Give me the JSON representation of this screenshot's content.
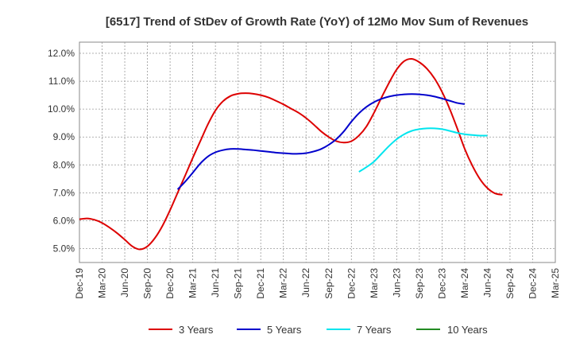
{
  "chart_data": {
    "type": "line",
    "title": "[6517]  Trend of StDev of Growth Rate (YoY) of 12Mo Mov Sum of Revenues",
    "xlabel": "",
    "ylabel": "",
    "ylim": [
      4.5,
      12.4
    ],
    "grid": true,
    "legend_position": "bottom",
    "x_tick_labels": [
      "Dec-19",
      "Mar-20",
      "Jun-20",
      "Sep-20",
      "Dec-20",
      "Mar-21",
      "Jun-21",
      "Sep-21",
      "Dec-21",
      "Mar-22",
      "Jun-22",
      "Sep-22",
      "Dec-22",
      "Mar-23",
      "Jun-23",
      "Sep-23",
      "Dec-23",
      "Mar-24",
      "Jun-24",
      "Sep-24",
      "Dec-24",
      "Mar-25"
    ],
    "y_ticks": [
      5.0,
      6.0,
      7.0,
      8.0,
      9.0,
      10.0,
      11.0,
      12.0
    ],
    "y_tick_labels": [
      "5.0%",
      "6.0%",
      "7.0%",
      "8.0%",
      "9.0%",
      "10.0%",
      "11.0%",
      "12.0%"
    ],
    "series": [
      {
        "name": "3 Years",
        "color": "#dd0000",
        "points": [
          [
            0,
            6.05
          ],
          [
            1,
            6.08
          ],
          [
            2,
            6.03
          ],
          [
            3,
            5.92
          ],
          [
            4,
            5.75
          ],
          [
            5,
            5.55
          ],
          [
            6,
            5.32
          ],
          [
            7,
            5.08
          ],
          [
            8,
            4.97
          ],
          [
            9,
            5.08
          ],
          [
            10,
            5.38
          ],
          [
            11,
            5.82
          ],
          [
            12,
            6.38
          ],
          [
            13,
            7.0
          ],
          [
            14,
            7.62
          ],
          [
            15,
            8.25
          ],
          [
            16,
            8.85
          ],
          [
            17,
            9.45
          ],
          [
            18,
            9.95
          ],
          [
            19,
            10.28
          ],
          [
            20,
            10.47
          ],
          [
            21,
            10.55
          ],
          [
            22,
            10.57
          ],
          [
            23,
            10.55
          ],
          [
            24,
            10.5
          ],
          [
            25,
            10.42
          ],
          [
            26,
            10.3
          ],
          [
            27,
            10.17
          ],
          [
            28,
            10.02
          ],
          [
            29,
            9.87
          ],
          [
            30,
            9.68
          ],
          [
            31,
            9.45
          ],
          [
            32,
            9.2
          ],
          [
            33,
            9.0
          ],
          [
            34,
            8.85
          ],
          [
            35,
            8.8
          ],
          [
            36,
            8.85
          ],
          [
            37,
            9.05
          ],
          [
            38,
            9.38
          ],
          [
            39,
            9.87
          ],
          [
            40,
            10.42
          ],
          [
            41,
            10.95
          ],
          [
            42,
            11.42
          ],
          [
            43,
            11.72
          ],
          [
            44,
            11.8
          ],
          [
            45,
            11.68
          ],
          [
            46,
            11.45
          ],
          [
            47,
            11.1
          ],
          [
            48,
            10.62
          ],
          [
            49,
            10.02
          ],
          [
            50,
            9.32
          ],
          [
            51,
            8.58
          ],
          [
            52,
            7.98
          ],
          [
            53,
            7.5
          ],
          [
            54,
            7.17
          ],
          [
            55,
            6.98
          ],
          [
            56,
            6.93
          ]
        ]
      },
      {
        "name": "5 Years",
        "color": "#0000cc",
        "points": [
          [
            13,
            7.12
          ],
          [
            14,
            7.4
          ],
          [
            15,
            7.72
          ],
          [
            16,
            8.05
          ],
          [
            17,
            8.3
          ],
          [
            18,
            8.45
          ],
          [
            19,
            8.53
          ],
          [
            20,
            8.57
          ],
          [
            21,
            8.57
          ],
          [
            22,
            8.55
          ],
          [
            23,
            8.53
          ],
          [
            24,
            8.5
          ],
          [
            25,
            8.47
          ],
          [
            26,
            8.44
          ],
          [
            27,
            8.42
          ],
          [
            28,
            8.4
          ],
          [
            29,
            8.4
          ],
          [
            30,
            8.42
          ],
          [
            31,
            8.48
          ],
          [
            32,
            8.57
          ],
          [
            33,
            8.72
          ],
          [
            34,
            8.92
          ],
          [
            35,
            9.2
          ],
          [
            36,
            9.55
          ],
          [
            37,
            9.85
          ],
          [
            38,
            10.08
          ],
          [
            39,
            10.25
          ],
          [
            40,
            10.37
          ],
          [
            41,
            10.45
          ],
          [
            42,
            10.5
          ],
          [
            43,
            10.53
          ],
          [
            44,
            10.54
          ],
          [
            45,
            10.53
          ],
          [
            46,
            10.5
          ],
          [
            47,
            10.45
          ],
          [
            48,
            10.38
          ],
          [
            49,
            10.3
          ],
          [
            50,
            10.22
          ],
          [
            51,
            10.18
          ]
        ]
      },
      {
        "name": "7 Years",
        "color": "#00e5ee",
        "points": [
          [
            37,
            7.75
          ],
          [
            38,
            7.92
          ],
          [
            39,
            8.12
          ],
          [
            40,
            8.4
          ],
          [
            41,
            8.68
          ],
          [
            42,
            8.92
          ],
          [
            43,
            9.1
          ],
          [
            44,
            9.22
          ],
          [
            45,
            9.28
          ],
          [
            46,
            9.31
          ],
          [
            47,
            9.31
          ],
          [
            48,
            9.28
          ],
          [
            49,
            9.22
          ],
          [
            50,
            9.15
          ],
          [
            51,
            9.1
          ],
          [
            52,
            9.07
          ],
          [
            53,
            9.05
          ],
          [
            54,
            9.05
          ]
        ]
      },
      {
        "name": "10 Years",
        "color": "#228b22",
        "points": []
      }
    ]
  }
}
